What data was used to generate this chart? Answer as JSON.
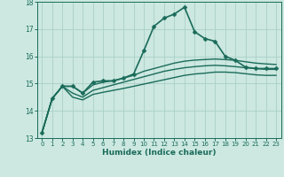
{
  "title": "",
  "xlabel": "Humidex (Indice chaleur)",
  "ylabel": "",
  "bg_color": "#cce8e0",
  "line_color": "#1a6b5a",
  "grid_color": "#aacfc8",
  "xlim": [
    -0.5,
    23.5
  ],
  "ylim": [
    13,
    18
  ],
  "yticks": [
    13,
    14,
    15,
    16,
    17,
    18
  ],
  "xticks": [
    0,
    1,
    2,
    3,
    4,
    5,
    6,
    7,
    8,
    9,
    10,
    11,
    12,
    13,
    14,
    15,
    16,
    17,
    18,
    19,
    20,
    21,
    22,
    23
  ],
  "series": [
    {
      "x": [
        0,
        1,
        2,
        3,
        4,
        5,
        6,
        7,
        8,
        9,
        10,
        11,
        12,
        13,
        14,
        15,
        16,
        17,
        18,
        19,
        20,
        21,
        22,
        23
      ],
      "y": [
        13.2,
        14.45,
        14.9,
        14.9,
        14.65,
        15.05,
        15.1,
        15.1,
        15.2,
        15.35,
        16.2,
        17.1,
        17.4,
        17.55,
        17.8,
        16.9,
        16.65,
        16.55,
        16.0,
        15.85,
        15.6,
        15.55,
        15.55,
        15.55
      ],
      "marker": "D",
      "markersize": 2.5,
      "linewidth": 1.2
    },
    {
      "x": [
        0,
        1,
        2,
        3,
        4,
        5,
        6,
        7,
        8,
        9,
        10,
        11,
        12,
        13,
        14,
        15,
        16,
        17,
        18,
        19,
        20,
        21,
        22,
        23
      ],
      "y": [
        13.2,
        14.45,
        14.9,
        14.9,
        14.65,
        14.95,
        15.05,
        15.1,
        15.2,
        15.3,
        15.45,
        15.55,
        15.65,
        15.75,
        15.82,
        15.86,
        15.88,
        15.9,
        15.88,
        15.85,
        15.8,
        15.75,
        15.72,
        15.7
      ],
      "marker": null,
      "markersize": 0,
      "linewidth": 1.0
    },
    {
      "x": [
        0,
        1,
        2,
        3,
        4,
        5,
        6,
        7,
        8,
        9,
        10,
        11,
        12,
        13,
        14,
        15,
        16,
        17,
        18,
        19,
        20,
        21,
        22,
        23
      ],
      "y": [
        13.2,
        14.45,
        14.9,
        14.65,
        14.5,
        14.75,
        14.85,
        14.95,
        15.05,
        15.15,
        15.25,
        15.35,
        15.45,
        15.52,
        15.58,
        15.62,
        15.65,
        15.67,
        15.65,
        15.62,
        15.58,
        15.55,
        15.52,
        15.52
      ],
      "marker": null,
      "markersize": 0,
      "linewidth": 1.0
    },
    {
      "x": [
        0,
        1,
        2,
        3,
        4,
        5,
        6,
        7,
        8,
        9,
        10,
        11,
        12,
        13,
        14,
        15,
        16,
        17,
        18,
        19,
        20,
        21,
        22,
        23
      ],
      "y": [
        13.2,
        14.45,
        14.9,
        14.5,
        14.4,
        14.6,
        14.68,
        14.75,
        14.82,
        14.9,
        14.98,
        15.06,
        15.14,
        15.22,
        15.3,
        15.35,
        15.38,
        15.42,
        15.42,
        15.4,
        15.36,
        15.32,
        15.3,
        15.3
      ],
      "marker": null,
      "markersize": 0,
      "linewidth": 1.0
    }
  ]
}
